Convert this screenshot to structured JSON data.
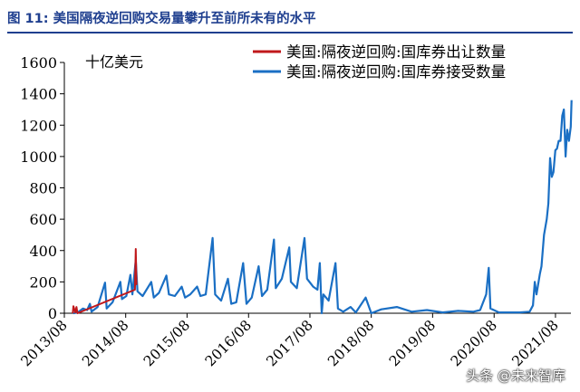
{
  "figure": {
    "label": "图 11:",
    "caption": "美国隔夜逆回购交易量攀升至前所未有的水平"
  },
  "watermark": "头条 @未来智库",
  "colors": {
    "title": "#1f3f8f",
    "accepted": "#1a6fc4",
    "offered": "#c0181b"
  },
  "chart_data": {
    "type": "line",
    "ylabel": "十亿美元",
    "ylim": [
      0,
      1600
    ],
    "yticks": [
      0,
      200,
      400,
      600,
      800,
      1000,
      1200,
      1400,
      1600
    ],
    "xlim": [
      "2013-08",
      "2021-11"
    ],
    "xticks": [
      "2013/08",
      "2014/08",
      "2015/08",
      "2016/08",
      "2017/08",
      "2018/08",
      "2019/08",
      "2020/08",
      "2021/08"
    ],
    "legend": "top-right",
    "series": [
      {
        "name": "美国:隔夜逆回购:国库券出让数量",
        "color": "#c0181b",
        "points": [
          [
            "2013-09-20",
            0
          ],
          [
            "2013-09-24",
            45
          ],
          [
            "2013-09-28",
            30
          ],
          [
            "2013-10-05",
            5
          ],
          [
            "2013-10-12",
            40
          ],
          [
            "2013-10-18",
            0
          ],
          [
            "2014-09-25",
            150
          ],
          [
            "2014-09-30",
            410
          ],
          [
            "2014-10-04",
            180
          ]
        ]
      },
      {
        "name": "美国:隔夜逆回购:国库券接受数量",
        "color": "#1a6fc4",
        "points": [
          [
            "2013-09-23",
            0
          ],
          [
            "2013-10-20",
            5
          ],
          [
            "2013-11-20",
            30
          ],
          [
            "2013-12-15",
            20
          ],
          [
            "2013-12-31",
            60
          ],
          [
            "2014-01-10",
            10
          ],
          [
            "2014-02-15",
            40
          ],
          [
            "2014-03-31",
            195
          ],
          [
            "2014-04-10",
            30
          ],
          [
            "2014-05-15",
            70
          ],
          [
            "2014-06-30",
            200
          ],
          [
            "2014-07-10",
            90
          ],
          [
            "2014-08-05",
            110
          ],
          [
            "2014-08-29",
            245
          ],
          [
            "2014-09-10",
            120
          ],
          [
            "2014-09-30",
            340
          ],
          [
            "2014-10-10",
            140
          ],
          [
            "2014-11-10",
            110
          ],
          [
            "2014-12-31",
            200
          ],
          [
            "2015-01-15",
            100
          ],
          [
            "2015-02-15",
            130
          ],
          [
            "2015-03-31",
            240
          ],
          [
            "2015-04-15",
            120
          ],
          [
            "2015-05-20",
            110
          ],
          [
            "2015-06-30",
            170
          ],
          [
            "2015-07-20",
            100
          ],
          [
            "2015-08-20",
            120
          ],
          [
            "2015-09-30",
            170
          ],
          [
            "2015-10-20",
            110
          ],
          [
            "2015-11-20",
            120
          ],
          [
            "2015-12-31",
            480
          ],
          [
            "2016-01-15",
            120
          ],
          [
            "2016-02-20",
            80
          ],
          [
            "2016-03-31",
            220
          ],
          [
            "2016-04-20",
            60
          ],
          [
            "2016-05-20",
            70
          ],
          [
            "2016-06-30",
            320
          ],
          [
            "2016-07-20",
            60
          ],
          [
            "2016-08-20",
            100
          ],
          [
            "2016-09-30",
            300
          ],
          [
            "2016-10-20",
            110
          ],
          [
            "2016-11-20",
            150
          ],
          [
            "2016-12-30",
            470
          ],
          [
            "2017-01-10",
            160
          ],
          [
            "2017-02-15",
            220
          ],
          [
            "2017-03-31",
            420
          ],
          [
            "2017-04-10",
            200
          ],
          [
            "2017-05-15",
            160
          ],
          [
            "2017-06-30",
            480
          ],
          [
            "2017-07-15",
            220
          ],
          [
            "2017-08-20",
            170
          ],
          [
            "2017-09-15",
            150
          ],
          [
            "2017-09-29",
            320
          ],
          [
            "2017-10-10",
            0
          ],
          [
            "2017-10-20",
            120
          ],
          [
            "2017-11-20",
            80
          ],
          [
            "2017-12-31",
            320
          ],
          [
            "2018-01-15",
            30
          ],
          [
            "2018-02-15",
            10
          ],
          [
            "2018-03-31",
            40
          ],
          [
            "2018-05-01",
            5
          ],
          [
            "2018-06-29",
            100
          ],
          [
            "2018-08-01",
            0
          ],
          [
            "2018-09-30",
            25
          ],
          [
            "2018-12-31",
            40
          ],
          [
            "2019-03-29",
            10
          ],
          [
            "2019-06-28",
            20
          ],
          [
            "2019-09-30",
            5
          ],
          [
            "2019-12-31",
            15
          ],
          [
            "2020-03-31",
            10
          ],
          [
            "2020-05-10",
            20
          ],
          [
            "2020-06-15",
            120
          ],
          [
            "2020-06-30",
            290
          ],
          [
            "2020-07-10",
            30
          ],
          [
            "2020-08-30",
            5
          ],
          [
            "2020-12-31",
            5
          ],
          [
            "2021-02-28",
            10
          ],
          [
            "2021-03-20",
            50
          ],
          [
            "2021-03-31",
            200
          ],
          [
            "2021-04-10",
            120
          ],
          [
            "2021-04-30",
            250
          ],
          [
            "2021-05-10",
            300
          ],
          [
            "2021-05-25",
            500
          ],
          [
            "2021-06-10",
            600
          ],
          [
            "2021-06-20",
            700
          ],
          [
            "2021-06-30",
            990
          ],
          [
            "2021-07-10",
            870
          ],
          [
            "2021-07-20",
            900
          ],
          [
            "2021-07-31",
            1040
          ],
          [
            "2021-08-10",
            1050
          ],
          [
            "2021-08-20",
            1100
          ],
          [
            "2021-08-31",
            1100
          ],
          [
            "2021-09-10",
            1260
          ],
          [
            "2021-09-20",
            1300
          ],
          [
            "2021-09-30",
            1000
          ],
          [
            "2021-10-10",
            1170
          ],
          [
            "2021-10-20",
            1100
          ],
          [
            "2021-10-31",
            1190
          ],
          [
            "2021-11-05",
            1360
          ]
        ]
      }
    ]
  }
}
